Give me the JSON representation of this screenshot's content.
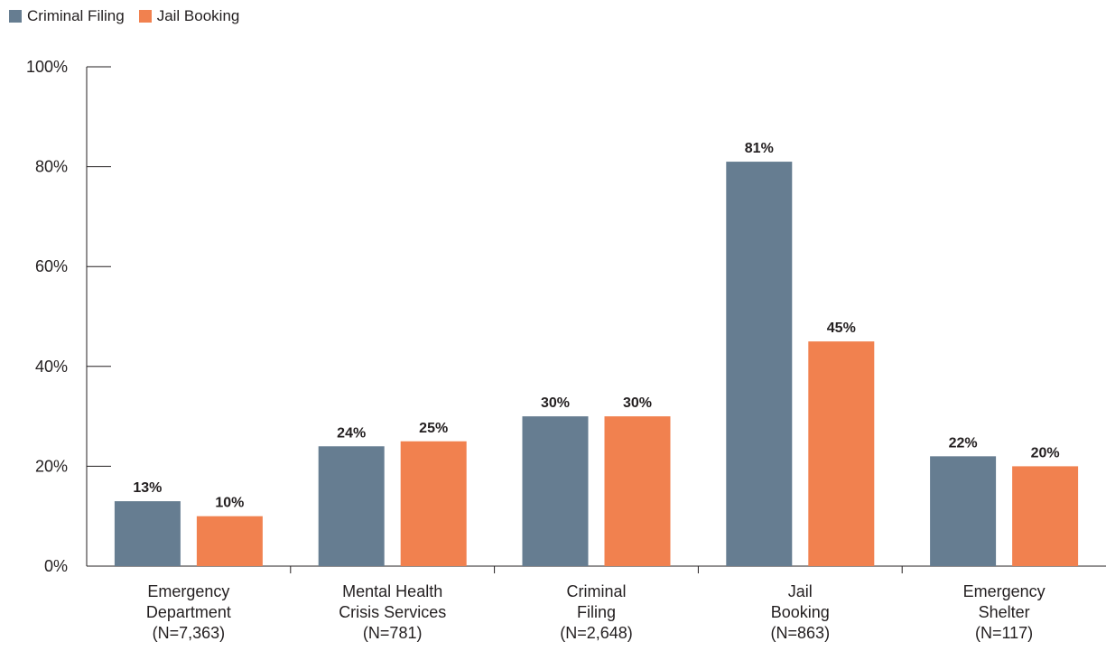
{
  "colors": {
    "criminal_filing": "#667d91",
    "jail_booking": "#f1814f",
    "axis": "#231f20"
  },
  "legend": {
    "items": [
      {
        "label": "Criminal Filing"
      },
      {
        "label": "Jail Booking"
      }
    ]
  },
  "chart_data": {
    "type": "bar",
    "title": "",
    "xlabel": "",
    "ylabel": "",
    "ylim": [
      0,
      100
    ],
    "y_ticks": [
      "0%",
      "20%",
      "40%",
      "60%",
      "80%",
      "100%"
    ],
    "y_tick_values": [
      0,
      20,
      40,
      60,
      80,
      100
    ],
    "legend_position": "top-left",
    "grid": false,
    "categories": [
      [
        "Emergency",
        "Department",
        "(N=7,363)"
      ],
      [
        "Mental Health",
        "Crisis Services",
        "(N=781)"
      ],
      [
        "Criminal",
        "Filing",
        "(N=2,648)"
      ],
      [
        "Jail",
        "Booking",
        "(N=863)"
      ],
      [
        "Emergency",
        "Shelter",
        "(N=117)"
      ]
    ],
    "series": [
      {
        "name": "Criminal Filing",
        "values": [
          13,
          24,
          30,
          81,
          22
        ],
        "labels": [
          "13%",
          "24%",
          "30%",
          "81%",
          "22%"
        ]
      },
      {
        "name": "Jail Booking",
        "values": [
          10,
          25,
          30,
          45,
          20
        ],
        "labels": [
          "10%",
          "25%",
          "30%",
          "45%",
          "20%"
        ]
      }
    ]
  }
}
